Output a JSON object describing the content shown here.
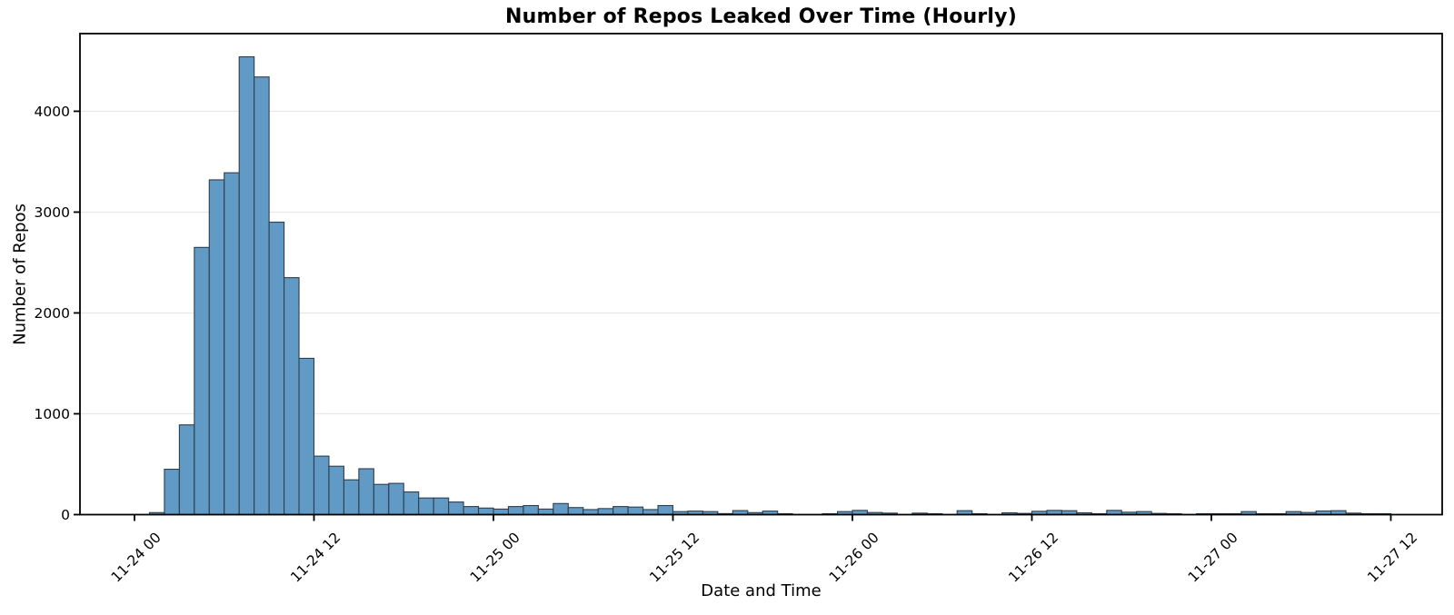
{
  "chart_data": {
    "type": "bar",
    "title": "Number of Repos Leaked Over Time (Hourly)",
    "xlabel": "Date and Time",
    "ylabel": "Number of Repos",
    "ylim": [
      0,
      4770
    ],
    "ytick_values": [
      0,
      1000,
      2000,
      3000,
      4000
    ],
    "ytick_labels": [
      "0",
      "1000",
      "2000",
      "3000",
      "4000"
    ],
    "xticks": [
      {
        "label": "11-24 00",
        "hour": 0
      },
      {
        "label": "11-24 12",
        "hour": 12
      },
      {
        "label": "11-25 00",
        "hour": 24
      },
      {
        "label": "11-25 12",
        "hour": 36
      },
      {
        "label": "11-26 00",
        "hour": 48
      },
      {
        "label": "11-26 12",
        "hour": 60
      },
      {
        "label": "11-27 00",
        "hour": 72
      },
      {
        "label": "11-27 12",
        "hour": 84
      }
    ],
    "grid": "horizontal",
    "legend": "none",
    "bin_width_hours": 1,
    "first_bin_hour_offset": 1,
    "bar_fill": "#609ac5",
    "bar_edge": "#2f3e4d",
    "grid_color": "#e8e8e8",
    "spine_color": "#000000",
    "text_color": "#000000",
    "categories": [
      "11-24 01",
      "11-24 02",
      "11-24 03",
      "11-24 04",
      "11-24 05",
      "11-24 06",
      "11-24 07",
      "11-24 08",
      "11-24 09",
      "11-24 10",
      "11-24 11",
      "11-24 12",
      "11-24 13",
      "11-24 14",
      "11-24 15",
      "11-24 16",
      "11-24 17",
      "11-24 18",
      "11-24 19",
      "11-24 20",
      "11-24 21",
      "11-24 22",
      "11-24 23",
      "11-25 00",
      "11-25 01",
      "11-25 02",
      "11-25 03",
      "11-25 04",
      "11-25 05",
      "11-25 06",
      "11-25 07",
      "11-25 08",
      "11-25 09",
      "11-25 10",
      "11-25 11",
      "11-25 12",
      "11-25 13",
      "11-25 14",
      "11-25 15",
      "11-25 16",
      "11-25 17",
      "11-25 18",
      "11-25 19",
      "11-25 20",
      "11-25 21",
      "11-25 22",
      "11-25 23",
      "11-26 00",
      "11-26 01",
      "11-26 02",
      "11-26 03",
      "11-26 04",
      "11-26 05",
      "11-26 06",
      "11-26 07",
      "11-26 08",
      "11-26 09",
      "11-26 10",
      "11-26 11",
      "11-26 12",
      "11-26 13",
      "11-26 14",
      "11-26 15",
      "11-26 16",
      "11-26 17",
      "11-26 18",
      "11-26 19",
      "11-26 20",
      "11-26 21",
      "11-26 22",
      "11-26 23",
      "11-27 00",
      "11-27 01",
      "11-27 02",
      "11-27 03",
      "11-27 04",
      "11-27 05",
      "11-27 06",
      "11-27 07",
      "11-27 08",
      "11-27 09",
      "11-27 10",
      "11-27 11"
    ],
    "values": [
      20,
      450,
      890,
      2650,
      3320,
      3390,
      4540,
      4340,
      2900,
      2350,
      1550,
      580,
      480,
      345,
      455,
      300,
      310,
      225,
      165,
      165,
      125,
      80,
      65,
      55,
      80,
      90,
      55,
      110,
      70,
      50,
      60,
      80,
      75,
      50,
      90,
      30,
      35,
      30,
      10,
      40,
      20,
      35,
      5,
      0,
      0,
      5,
      30,
      42,
      21,
      15,
      0,
      15,
      5,
      0,
      39,
      5,
      0,
      18,
      12,
      33,
      42,
      39,
      18,
      6,
      42,
      24,
      30,
      12,
      6,
      0,
      5,
      5,
      9,
      30,
      9,
      6,
      30,
      21,
      36,
      39,
      15,
      5,
      3
    ]
  }
}
